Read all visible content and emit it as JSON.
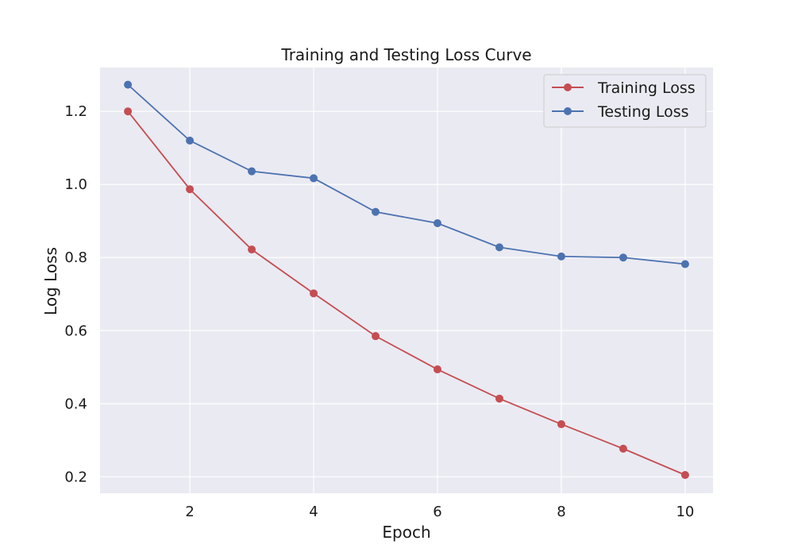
{
  "chart_data": {
    "type": "line",
    "title": "Training and Testing Loss Curve",
    "xlabel": "Epoch",
    "ylabel": "Log Loss",
    "x": [
      1,
      2,
      3,
      4,
      5,
      6,
      7,
      8,
      9,
      10
    ],
    "xlim": [
      0.55,
      10.45
    ],
    "ylim": [
      0.155,
      1.32
    ],
    "xticks": [
      2,
      4,
      6,
      8,
      10
    ],
    "yticks": [
      0.2,
      0.4,
      0.6,
      0.8,
      1.0,
      1.2
    ],
    "xtick_labels": [
      "2",
      "4",
      "6",
      "8",
      "10"
    ],
    "ytick_labels": [
      "0.2",
      "0.4",
      "0.6",
      "0.8",
      "1.0",
      "1.2"
    ],
    "grid": true,
    "legend_position": "top-right",
    "series": [
      {
        "name": "Training Loss",
        "color": "#c44e52",
        "values": [
          1.2,
          0.987,
          0.822,
          0.702,
          0.585,
          0.494,
          0.414,
          0.344,
          0.277,
          0.205
        ]
      },
      {
        "name": "Testing Loss",
        "color": "#4c72b0",
        "values": [
          1.273,
          1.12,
          1.036,
          1.017,
          0.925,
          0.894,
          0.828,
          0.803,
          0.8,
          0.782
        ]
      }
    ],
    "style": {
      "background": "#eaeaf2",
      "grid_color": "#ffffff"
    }
  }
}
